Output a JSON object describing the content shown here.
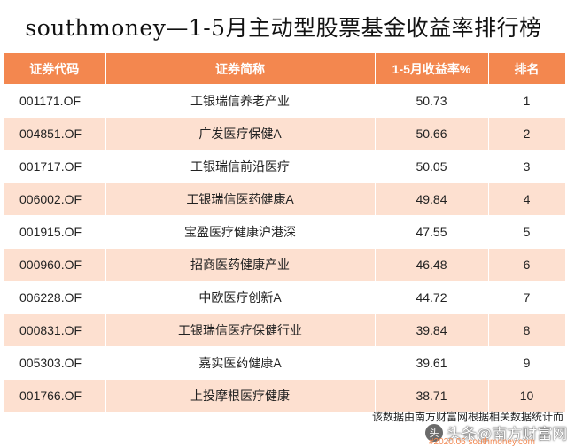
{
  "title": "southmoney—1-5月主动型股票基金收益率排行榜",
  "table": {
    "headers": [
      "证券代码",
      "证券简称",
      "1-5月收益率%",
      "排名"
    ],
    "rows": [
      {
        "code": "001171.OF",
        "name": "工银瑞信养老产业",
        "return": "50.73",
        "rank": "1"
      },
      {
        "code": "004851.OF",
        "name": "广发医疗保健A",
        "return": "50.66",
        "rank": "2"
      },
      {
        "code": "001717.OF",
        "name": "工银瑞信前沿医疗",
        "return": "50.05",
        "rank": "3"
      },
      {
        "code": "006002.OF",
        "name": "工银瑞信医药健康A",
        "return": "49.84",
        "rank": "4"
      },
      {
        "code": "001915.OF",
        "name": "宝盈医疗健康沪港深",
        "return": "47.55",
        "rank": "5"
      },
      {
        "code": "000960.OF",
        "name": "招商医药健康产业",
        "return": "46.48",
        "rank": "6"
      },
      {
        "code": "006228.OF",
        "name": "中欧医疗创新A",
        "return": "44.72",
        "rank": "7"
      },
      {
        "code": "000831.OF",
        "name": "工银瑞信医疗保健行业",
        "return": "39.84",
        "rank": "8"
      },
      {
        "code": "005303.OF",
        "name": "嘉实医药健康A",
        "return": "39.61",
        "rank": "9"
      },
      {
        "code": "001766.OF",
        "name": "上投摩根医疗健康",
        "return": "38.71",
        "rank": "10"
      }
    ]
  },
  "footer": {
    "source_note": "该数据由南方财富网根据相关数据统计而",
    "watermark_text": "头条@南方财富网",
    "watermark_sub": "#2020.06 southmoney.com",
    "watermark_logo": "头"
  },
  "colors": {
    "header_bg": "#f3874f",
    "stripe_bg": "#fde0d0"
  }
}
